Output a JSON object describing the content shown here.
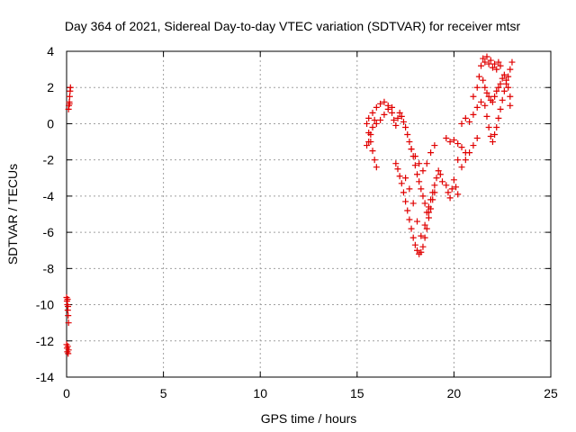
{
  "chart_data": {
    "type": "scatter",
    "title": "Day 364 of 2021, Sidereal Day-to-day VTEC variation (SDTVAR) for receiver mtsr",
    "xlabel": "GPS time / hours",
    "ylabel": "SDTVAR / TECUs",
    "xlim": [
      0,
      25
    ],
    "ylim": [
      -14,
      4
    ],
    "xticks": [
      0,
      5,
      10,
      15,
      20,
      25
    ],
    "yticks": [
      -14,
      -12,
      -10,
      -8,
      -6,
      -4,
      -2,
      0,
      2,
      4
    ],
    "grid": true,
    "marker": "+",
    "color": "#e00000",
    "series": [
      {
        "name": "SDTVAR",
        "points": [
          [
            0.1,
            0.8
          ],
          [
            0.12,
            1.0
          ],
          [
            0.14,
            1.2
          ],
          [
            0.16,
            1.5
          ],
          [
            0.18,
            1.8
          ],
          [
            0.2,
            2.0
          ],
          [
            0.15,
            1.1
          ],
          [
            0.0,
            -9.6
          ],
          [
            0.02,
            -9.8
          ],
          [
            0.04,
            -10.0
          ],
          [
            0.06,
            -10.3
          ],
          [
            0.08,
            -10.6
          ],
          [
            0.1,
            -11.0
          ],
          [
            0.05,
            -9.7
          ],
          [
            0.07,
            -10.1
          ],
          [
            0.0,
            -12.2
          ],
          [
            0.02,
            -12.4
          ],
          [
            0.04,
            -12.6
          ],
          [
            0.06,
            -12.3
          ],
          [
            0.08,
            -12.7
          ],
          [
            0.1,
            -12.5
          ],
          [
            15.5,
            0.0
          ],
          [
            15.6,
            -0.5
          ],
          [
            15.7,
            -1.0
          ],
          [
            15.8,
            -1.5
          ],
          [
            15.9,
            -2.0
          ],
          [
            16.0,
            -2.4
          ],
          [
            15.5,
            -1.2
          ],
          [
            15.6,
            -1.0
          ],
          [
            15.7,
            -0.6
          ],
          [
            15.8,
            -0.2
          ],
          [
            15.9,
            0.2
          ],
          [
            15.6,
            0.3
          ],
          [
            15.8,
            0.6
          ],
          [
            16.0,
            0.9
          ],
          [
            16.2,
            1.1
          ],
          [
            16.4,
            1.2
          ],
          [
            16.6,
            1.0
          ],
          [
            16.8,
            0.9
          ],
          [
            16.0,
            0.0
          ],
          [
            16.2,
            0.2
          ],
          [
            16.4,
            0.5
          ],
          [
            16.6,
            0.8
          ],
          [
            16.8,
            0.6
          ],
          [
            16.9,
            0.2
          ],
          [
            17.0,
            -0.1
          ],
          [
            17.1,
            0.3
          ],
          [
            17.2,
            0.6
          ],
          [
            17.3,
            0.4
          ],
          [
            17.4,
            0.1
          ],
          [
            17.5,
            -0.2
          ],
          [
            17.6,
            -0.6
          ],
          [
            17.7,
            -1.0
          ],
          [
            17.8,
            -1.4
          ],
          [
            17.9,
            -1.8
          ],
          [
            18.0,
            -2.3
          ],
          [
            18.1,
            -2.8
          ],
          [
            18.2,
            -3.2
          ],
          [
            18.3,
            -3.6
          ],
          [
            18.4,
            -4.0
          ],
          [
            18.5,
            -4.4
          ],
          [
            18.6,
            -4.9
          ],
          [
            18.7,
            -4.6
          ],
          [
            18.8,
            -4.2
          ],
          [
            18.9,
            -3.8
          ],
          [
            19.0,
            -3.4
          ],
          [
            19.1,
            -3.0
          ],
          [
            19.2,
            -2.6
          ],
          [
            19.3,
            -2.8
          ],
          [
            19.4,
            -3.2
          ],
          [
            17.0,
            -2.2
          ],
          [
            17.1,
            -2.5
          ],
          [
            17.2,
            -2.9
          ],
          [
            17.3,
            -3.3
          ],
          [
            17.4,
            -3.8
          ],
          [
            17.5,
            -4.3
          ],
          [
            17.6,
            -4.8
          ],
          [
            17.7,
            -5.3
          ],
          [
            17.8,
            -5.8
          ],
          [
            17.9,
            -6.3
          ],
          [
            18.0,
            -6.7
          ],
          [
            18.1,
            -7.0
          ],
          [
            18.2,
            -7.2
          ],
          [
            18.3,
            -7.1
          ],
          [
            18.4,
            -6.8
          ],
          [
            18.5,
            -6.3
          ],
          [
            18.6,
            -5.8
          ],
          [
            18.7,
            -5.2
          ],
          [
            18.8,
            -4.7
          ],
          [
            18.9,
            -4.2
          ],
          [
            19.0,
            -3.8
          ],
          [
            17.5,
            -3.0
          ],
          [
            17.7,
            -3.6
          ],
          [
            17.9,
            -4.4
          ],
          [
            18.1,
            -5.4
          ],
          [
            18.3,
            -6.2
          ],
          [
            18.5,
            -5.6
          ],
          [
            18.7,
            -4.9
          ],
          [
            17.8,
            -1.4
          ],
          [
            18.0,
            -1.8
          ],
          [
            18.2,
            -2.2
          ],
          [
            18.4,
            -2.6
          ],
          [
            18.6,
            -2.2
          ],
          [
            18.8,
            -1.6
          ],
          [
            19.0,
            -1.2
          ],
          [
            19.6,
            -3.4
          ],
          [
            19.7,
            -3.8
          ],
          [
            19.8,
            -4.1
          ],
          [
            19.9,
            -3.6
          ],
          [
            20.0,
            -3.1
          ],
          [
            20.1,
            -3.5
          ],
          [
            20.2,
            -3.9
          ],
          [
            19.6,
            -0.8
          ],
          [
            19.8,
            -1.0
          ],
          [
            20.0,
            -0.9
          ],
          [
            20.2,
            -1.1
          ],
          [
            20.4,
            -1.3
          ],
          [
            20.6,
            -1.6
          ],
          [
            20.2,
            -2.0
          ],
          [
            20.4,
            -2.4
          ],
          [
            20.6,
            -2.0
          ],
          [
            20.8,
            -1.6
          ],
          [
            21.0,
            -1.2
          ],
          [
            21.2,
            -0.8
          ],
          [
            20.4,
            0.0
          ],
          [
            20.6,
            0.3
          ],
          [
            20.8,
            0.1
          ],
          [
            21.0,
            0.5
          ],
          [
            21.2,
            0.9
          ],
          [
            21.4,
            1.2
          ],
          [
            21.0,
            1.5
          ],
          [
            21.2,
            2.0
          ],
          [
            21.3,
            2.6
          ],
          [
            21.4,
            3.2
          ],
          [
            21.5,
            3.6
          ],
          [
            21.6,
            3.4
          ],
          [
            21.7,
            3.7
          ],
          [
            21.8,
            3.3
          ],
          [
            21.9,
            3.5
          ],
          [
            22.0,
            3.1
          ],
          [
            22.1,
            3.3
          ],
          [
            22.2,
            3.0
          ],
          [
            22.3,
            3.4
          ],
          [
            22.4,
            3.2
          ],
          [
            21.5,
            2.4
          ],
          [
            21.6,
            2.0
          ],
          [
            21.7,
            1.7
          ],
          [
            21.8,
            1.5
          ],
          [
            21.9,
            1.3
          ],
          [
            22.0,
            1.2
          ],
          [
            22.1,
            1.5
          ],
          [
            22.2,
            1.8
          ],
          [
            22.3,
            2.0
          ],
          [
            22.4,
            2.2
          ],
          [
            22.5,
            2.5
          ],
          [
            22.6,
            2.7
          ],
          [
            22.7,
            2.4
          ],
          [
            22.8,
            2.0
          ],
          [
            22.9,
            1.5
          ],
          [
            22.9,
            1.0
          ],
          [
            21.6,
            1.0
          ],
          [
            21.7,
            0.4
          ],
          [
            21.8,
            -0.2
          ],
          [
            21.9,
            -0.7
          ],
          [
            22.0,
            -1.0
          ],
          [
            22.1,
            -0.6
          ],
          [
            22.2,
            -0.2
          ],
          [
            22.3,
            0.3
          ],
          [
            22.4,
            0.8
          ],
          [
            22.5,
            1.3
          ],
          [
            22.6,
            1.8
          ],
          [
            22.7,
            2.2
          ],
          [
            22.8,
            2.6
          ],
          [
            22.9,
            3.0
          ],
          [
            23.0,
            3.4
          ]
        ]
      }
    ]
  }
}
